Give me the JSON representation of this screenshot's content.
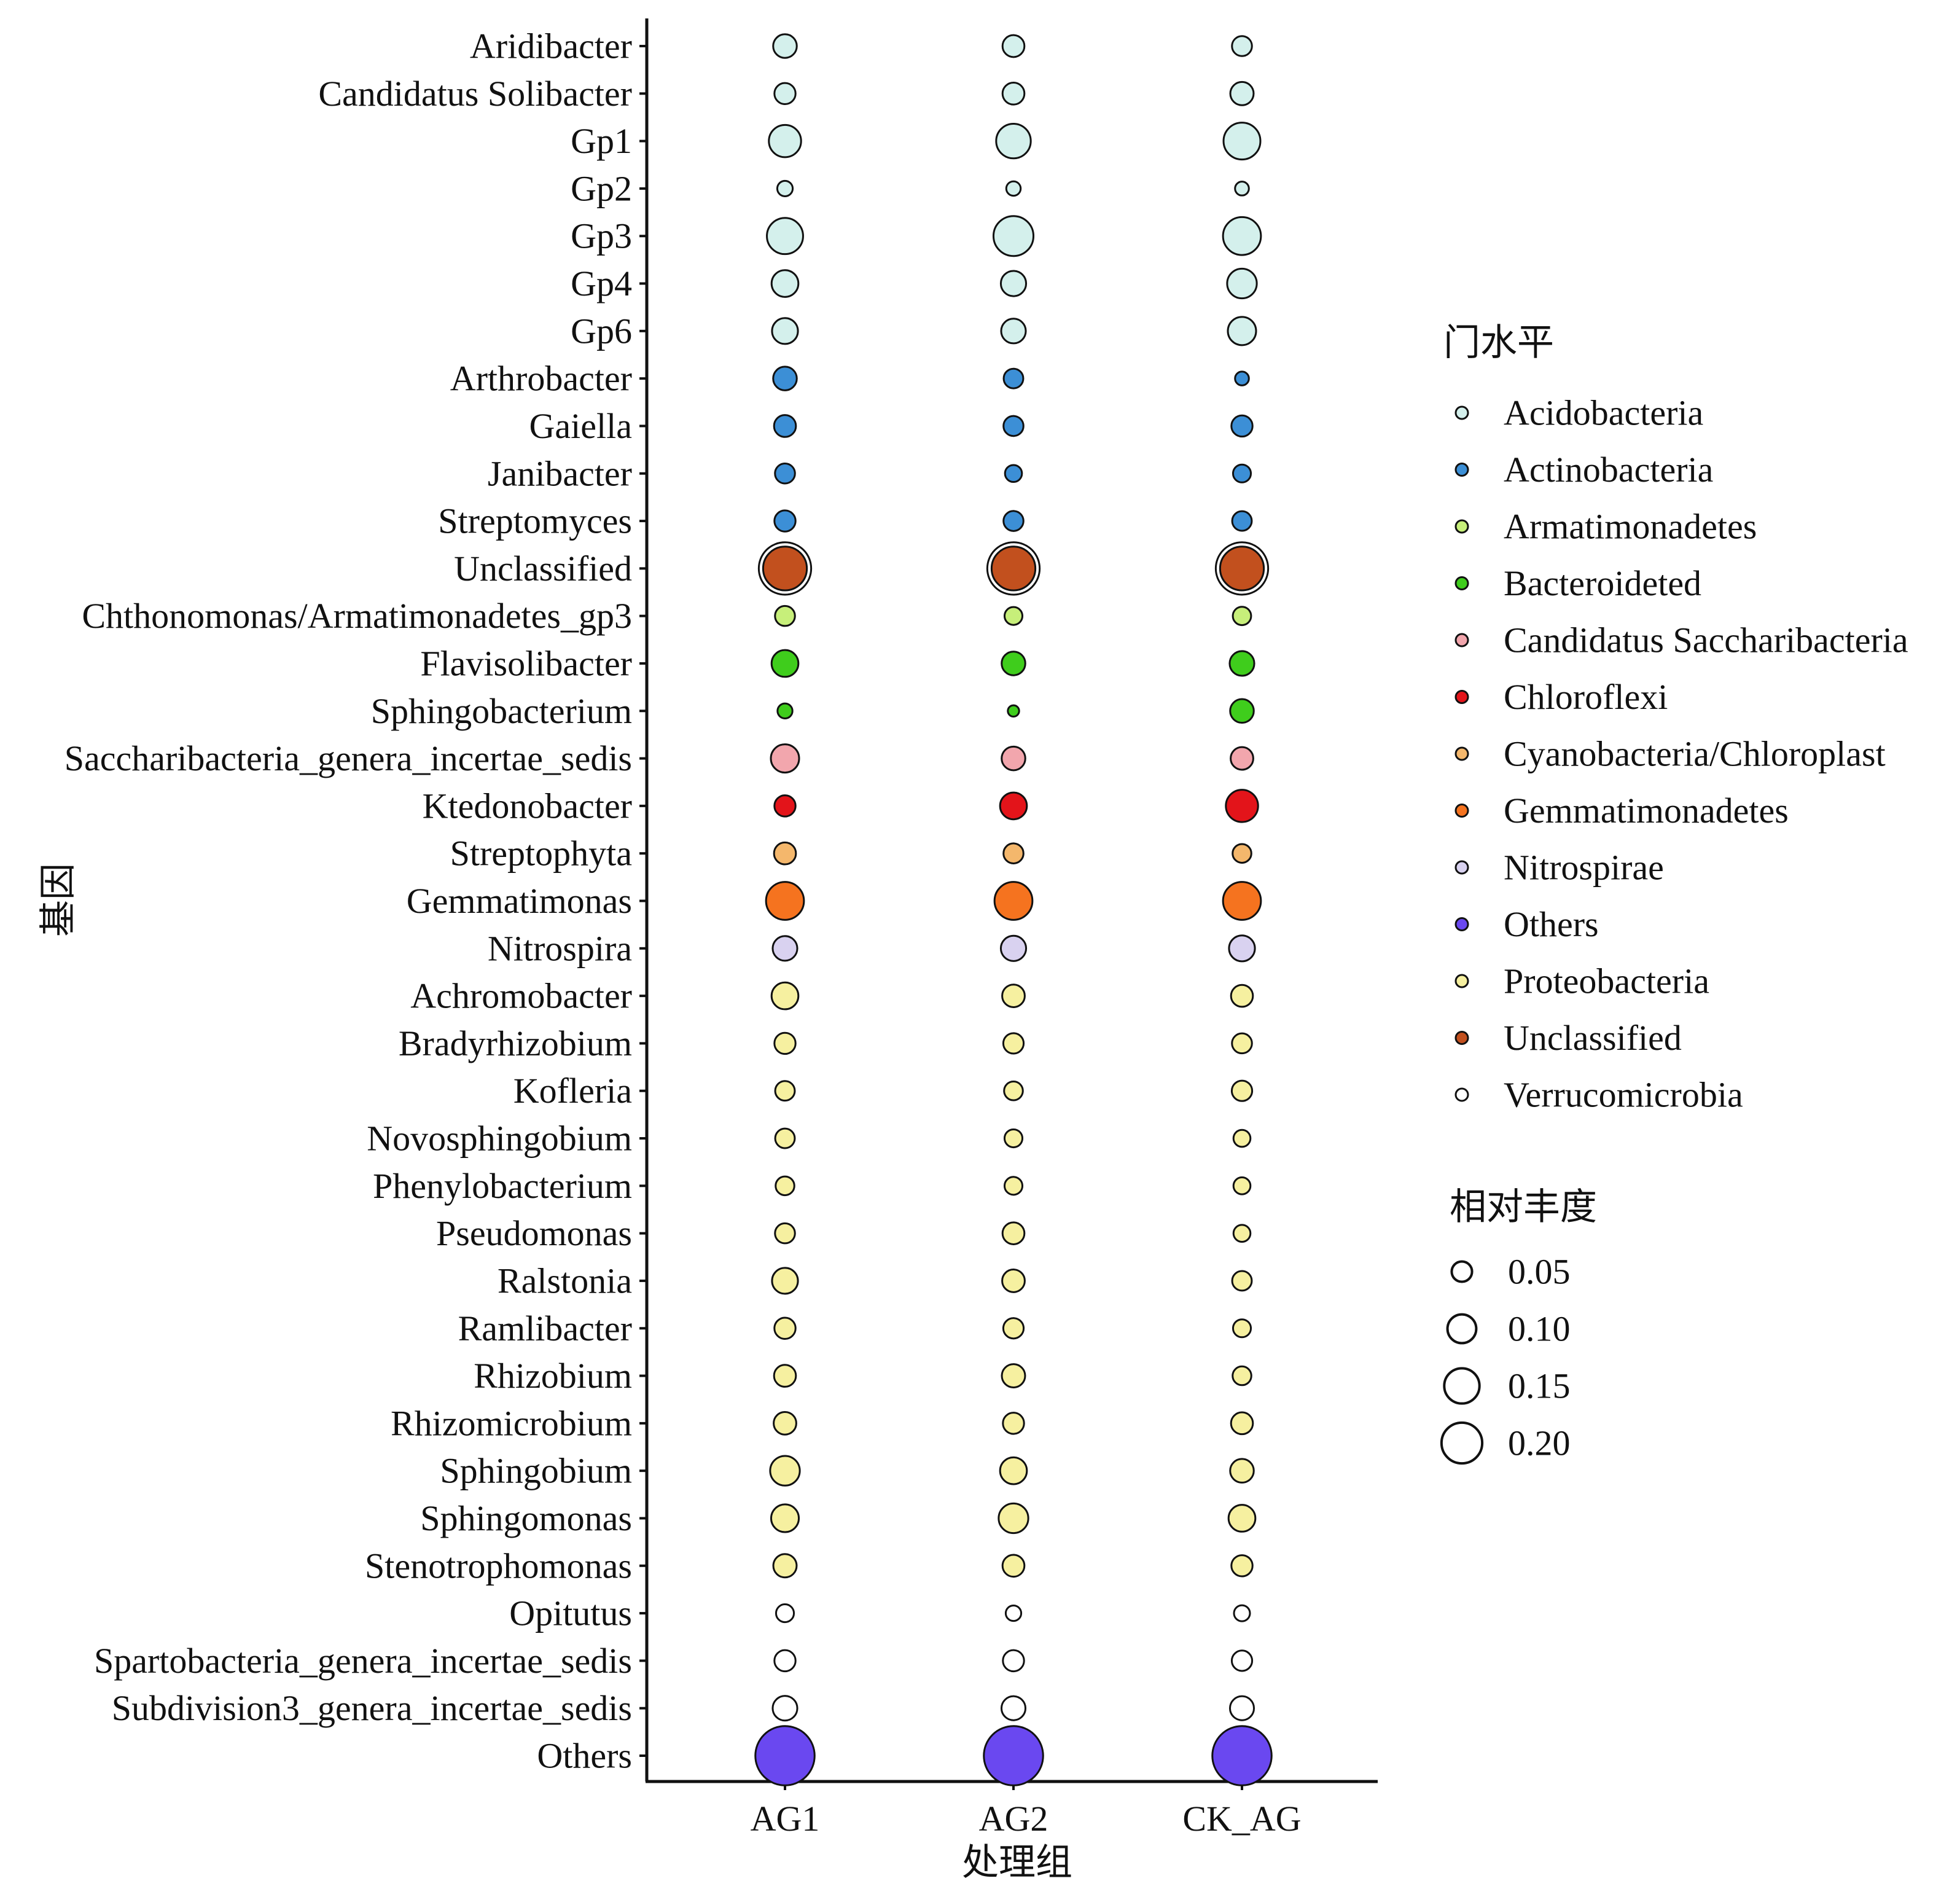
{
  "chart_data": {
    "type": "scatter",
    "title": "",
    "xlabel": "处理组",
    "ylabel": "基因",
    "x_categories": [
      "AG1",
      "AG2",
      "CK_AG"
    ],
    "y_categories": [
      "Aridibacter",
      "Candidatus  Solibacter",
      "Gp1",
      "Gp2",
      "Gp3",
      "Gp4",
      "Gp6",
      "Arthrobacter",
      "Gaiella",
      "Janibacter",
      "Streptomyces",
      "Unclassified",
      "Chthonomonas/Armatimonadetes_gp3",
      "Flavisolibacter",
      "Sphingobacterium",
      "Saccharibacteria_genera_incertae_sedis",
      "Ktedonobacter",
      "Streptophyta",
      "Gemmatimonas",
      "Nitrospira",
      "Achromobacter",
      "Bradyrhizobium",
      "Kofleria",
      "Novosphingobium",
      "Phenylobacterium",
      "Pseudomonas",
      "Ralstonia",
      "Ramlibacter",
      "Rhizobium",
      "Rhizomicrobium",
      "Sphingobium",
      "Sphingomonas",
      "Stenotrophomonas",
      "Opitutus",
      "Spartobacteria_genera_incertae_sedis",
      "Subdivision3_genera_incertae_sedis",
      "Others"
    ],
    "points": [
      {
        "genus": "Aridibacter",
        "phylum": "Acidobacteria",
        "values": [
          0.035,
          0.03,
          0.025
        ]
      },
      {
        "genus": "Candidatus  Solibacter",
        "phylum": "Acidobacteria",
        "values": [
          0.028,
          0.03,
          0.034
        ]
      },
      {
        "genus": "Gp1",
        "phylum": "Acidobacteria",
        "values": [
          0.065,
          0.075,
          0.085
        ]
      },
      {
        "genus": "Gp2",
        "phylum": "Acidobacteria",
        "values": [
          0.015,
          0.013,
          0.012
        ]
      },
      {
        "genus": "Gp3",
        "phylum": "Acidobacteria",
        "values": [
          0.082,
          0.1,
          0.09
        ]
      },
      {
        "genus": "Gp4",
        "phylum": "Acidobacteria",
        "values": [
          0.045,
          0.04,
          0.055
        ]
      },
      {
        "genus": "Gp6",
        "phylum": "Acidobacteria",
        "values": [
          0.042,
          0.038,
          0.05
        ]
      },
      {
        "genus": "Arthrobacter",
        "phylum": "Actinobacteria",
        "values": [
          0.035,
          0.024,
          0.012
        ]
      },
      {
        "genus": "Gaiella",
        "phylum": "Actinobacteria",
        "values": [
          0.03,
          0.025,
          0.028
        ]
      },
      {
        "genus": "Janibacter",
        "phylum": "Actinobacteria",
        "values": [
          0.025,
          0.018,
          0.02
        ]
      },
      {
        "genus": "Streptomyces",
        "phylum": "Actinobacteria",
        "values": [
          0.028,
          0.025,
          0.024
        ]
      },
      {
        "genus": "Unclassified",
        "phylum": "Unclassified",
        "values": [
          0.12,
          0.12,
          0.12
        ]
      },
      {
        "genus": "Chthonomonas/Armatimonadetes_gp3",
        "phylum": "Armatimonadetes",
        "values": [
          0.025,
          0.02,
          0.021
        ]
      },
      {
        "genus": "Flavisolibacter",
        "phylum": "Bacteroideted",
        "values": [
          0.045,
          0.035,
          0.038
        ]
      },
      {
        "genus": "Sphingobacterium",
        "phylum": "Bacteroideted",
        "values": [
          0.014,
          0.008,
          0.035
        ]
      },
      {
        "genus": "Saccharibacteria_genera_incertae_sedis",
        "phylum": "Candidatus  Saccharibacteria",
        "values": [
          0.05,
          0.035,
          0.032
        ]
      },
      {
        "genus": "Ktedonobacter",
        "phylum": "Chloroflexi",
        "values": [
          0.028,
          0.045,
          0.065
        ]
      },
      {
        "genus": "Streptophyta",
        "phylum": "Cyanobacteria/Chloroplast",
        "values": [
          0.03,
          0.025,
          0.022
        ]
      },
      {
        "genus": "Gemmatimonas",
        "phylum": "Gemmatimonadetes",
        "values": [
          0.09,
          0.09,
          0.09
        ]
      },
      {
        "genus": "Nitrospira",
        "phylum": "Nitrospirae",
        "values": [
          0.038,
          0.04,
          0.042
        ]
      },
      {
        "genus": "Achromobacter",
        "phylum": "Proteobacteria",
        "values": [
          0.045,
          0.032,
          0.03
        ]
      },
      {
        "genus": "Bradyrhizobium",
        "phylum": "Proteobacteria",
        "values": [
          0.028,
          0.026,
          0.025
        ]
      },
      {
        "genus": "Kofleria",
        "phylum": "Proteobacteria",
        "values": [
          0.024,
          0.022,
          0.026
        ]
      },
      {
        "genus": "Novosphingobium",
        "phylum": "Proteobacteria",
        "values": [
          0.024,
          0.02,
          0.018
        ]
      },
      {
        "genus": "Phenylobacterium",
        "phylum": "Proteobacteria",
        "values": [
          0.022,
          0.02,
          0.018
        ]
      },
      {
        "genus": "Pseudomonas",
        "phylum": "Proteobacteria",
        "values": [
          0.025,
          0.03,
          0.018
        ]
      },
      {
        "genus": "Ralstonia",
        "phylum": "Proteobacteria",
        "values": [
          0.042,
          0.032,
          0.024
        ]
      },
      {
        "genus": "Ramlibacter",
        "phylum": "Proteobacteria",
        "values": [
          0.028,
          0.026,
          0.02
        ]
      },
      {
        "genus": "Rhizobium",
        "phylum": "Proteobacteria",
        "values": [
          0.03,
          0.034,
          0.022
        ]
      },
      {
        "genus": "Rhizomicrobium",
        "phylum": "Proteobacteria",
        "values": [
          0.032,
          0.028,
          0.03
        ]
      },
      {
        "genus": "Sphingobium",
        "phylum": "Proteobacteria",
        "values": [
          0.055,
          0.045,
          0.035
        ]
      },
      {
        "genus": "Sphingomonas",
        "phylum": "Proteobacteria",
        "values": [
          0.048,
          0.055,
          0.045
        ]
      },
      {
        "genus": "Stenotrophomonas",
        "phylum": "Proteobacteria",
        "values": [
          0.034,
          0.03,
          0.028
        ]
      },
      {
        "genus": "Opitutus",
        "phylum": "Verrucomicrobia",
        "values": [
          0.02,
          0.015,
          0.016
        ]
      },
      {
        "genus": "Spartobacteria_genera_incertae_sedis",
        "phylum": "Verrucomicrobia",
        "values": [
          0.028,
          0.028,
          0.026
        ]
      },
      {
        "genus": "Subdivision3_genera_incertae_sedis",
        "phylum": "Verrucomicrobia",
        "values": [
          0.038,
          0.036,
          0.036
        ]
      },
      {
        "genus": "Others",
        "phylum": "Others",
        "values": [
          0.22,
          0.22,
          0.22
        ]
      }
    ],
    "legend_color": {
      "title": "门水平",
      "position": "right",
      "entries": [
        {
          "label": "Acidobacteria",
          "color": "#d4f0ec"
        },
        {
          "label": "Actinobacteria",
          "color": "#3c8fd6"
        },
        {
          "label": "Armatimonadetes",
          "color": "#c7ef7a"
        },
        {
          "label": "Bacteroideted",
          "color": "#3fcd1c"
        },
        {
          "label": "Candidatus  Saccharibacteria",
          "color": "#f2a6ad"
        },
        {
          "label": "Chloroflexi",
          "color": "#e3141a"
        },
        {
          "label": "Cyanobacteria/Chloroplast",
          "color": "#f4b76c"
        },
        {
          "label": "Gemmatimonadetes",
          "color": "#f5731f"
        },
        {
          "label": "Nitrospirae",
          "color": "#d9d2f0"
        },
        {
          "label": "Others",
          "color": "#6a48f0"
        },
        {
          "label": "Proteobacteria",
          "color": "#f6f0a0"
        },
        {
          "label": "Unclassified",
          "color": "#c2501e"
        },
        {
          "label": "Verrucomicrobia",
          "color": "#ffffff"
        }
      ]
    },
    "legend_size": {
      "title": "相对丰度",
      "position": "right",
      "values": [
        0.05,
        0.1,
        0.15,
        0.2
      ],
      "labels": [
        "0.05",
        "0.10",
        "0.15",
        "0.20"
      ]
    },
    "grid": false
  }
}
